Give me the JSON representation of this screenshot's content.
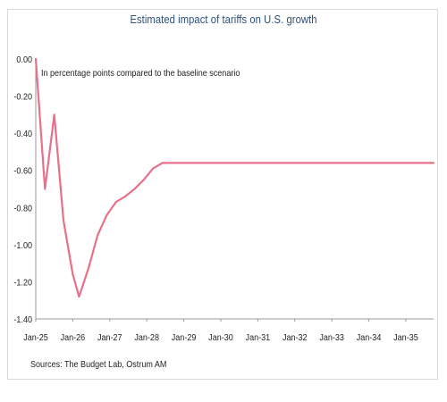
{
  "chart_data": {
    "type": "line",
    "title": "Estimated impact of tariffs on U.S. growth",
    "subtitle": "In percentage points compared to the baseline scenario",
    "source": "Sources: The Budget Lab, Ostrum AM",
    "xlabel": "",
    "ylabel": "",
    "x_ticks": [
      "Jan-25",
      "Jan-26",
      "Jan-27",
      "Jan-28",
      "Jan-29",
      "Jan-30",
      "Jan-31",
      "Jan-32",
      "Jan-33",
      "Jan-34",
      "Jan-35"
    ],
    "y_ticks": [
      "0.00",
      "-0.20",
      "-0.40",
      "-0.60",
      "-0.80",
      "-1.00",
      "-1.20",
      "-1.40"
    ],
    "ylim": [
      -1.4,
      0.0
    ],
    "x_range_years": [
      2025.0,
      2035.75
    ],
    "grid": false,
    "legend": "none",
    "series": [
      {
        "color": "#e8708a",
        "points": [
          {
            "x": 2025.0,
            "y": 0.0
          },
          {
            "x": 2025.25,
            "y": -0.7
          },
          {
            "x": 2025.5,
            "y": -0.3
          },
          {
            "x": 2025.75,
            "y": -0.87
          },
          {
            "x": 2026.0,
            "y": -1.16
          },
          {
            "x": 2026.17,
            "y": -1.28
          },
          {
            "x": 2026.42,
            "y": -1.13
          },
          {
            "x": 2026.67,
            "y": -0.95
          },
          {
            "x": 2026.92,
            "y": -0.84
          },
          {
            "x": 2027.17,
            "y": -0.77
          },
          {
            "x": 2027.42,
            "y": -0.74
          },
          {
            "x": 2027.67,
            "y": -0.7
          },
          {
            "x": 2027.92,
            "y": -0.65
          },
          {
            "x": 2028.17,
            "y": -0.59
          },
          {
            "x": 2028.42,
            "y": -0.56
          },
          {
            "x": 2029.0,
            "y": -0.56
          },
          {
            "x": 2030.0,
            "y": -0.56
          },
          {
            "x": 2031.0,
            "y": -0.56
          },
          {
            "x": 2032.0,
            "y": -0.56
          },
          {
            "x": 2033.0,
            "y": -0.56
          },
          {
            "x": 2034.0,
            "y": -0.56
          },
          {
            "x": 2035.0,
            "y": -0.56
          },
          {
            "x": 2035.75,
            "y": -0.56
          }
        ]
      }
    ]
  }
}
